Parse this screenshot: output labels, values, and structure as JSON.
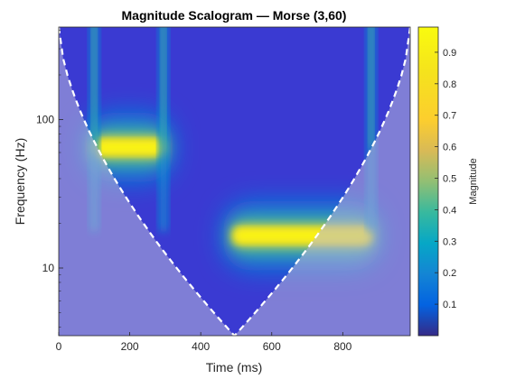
{
  "chart_data": {
    "type": "heatmap",
    "title": "Magnitude Scalogram — Morse (3,60)",
    "xlabel": "Time (ms)",
    "ylabel": "Frequency (Hz)",
    "xlim": [
      0,
      990
    ],
    "ylim": [
      3.5,
      420
    ],
    "yscale": "log",
    "x_ticks": [
      0,
      200,
      400,
      600,
      800
    ],
    "y_ticks": [
      10,
      100
    ],
    "grid": false,
    "colormap": "parula",
    "colorbar": {
      "label": "Magnitude",
      "range": [
        0.0,
        0.98
      ],
      "ticks": [
        "0.1",
        "0.2",
        "0.3",
        "0.4",
        "0.5",
        "0.6",
        "0.7",
        "0.8",
        "0.9"
      ]
    },
    "features": [
      {
        "kind": "tone",
        "t_start": 100,
        "t_end": 295,
        "frequency": 65,
        "magnitude": 0.97
      },
      {
        "kind": "tone",
        "t_start": 490,
        "t_end": 880,
        "frequency": 16.5,
        "magnitude": 0.97
      },
      {
        "kind": "transient",
        "time": 100
      },
      {
        "kind": "transient",
        "time": 295
      },
      {
        "kind": "transient",
        "time": 880
      }
    ],
    "background_magnitude": 0.06,
    "cone_of_influence": {
      "shaded": true,
      "line": "white dashed"
    }
  }
}
